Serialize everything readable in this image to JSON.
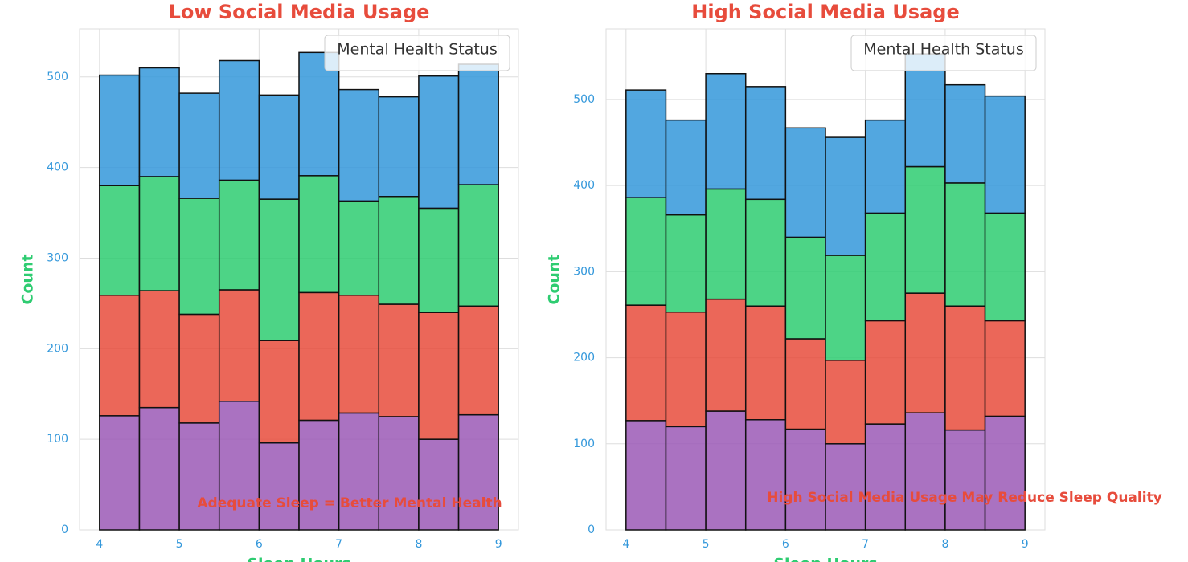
{
  "chart_data": [
    {
      "type": "stacked_histogram",
      "title": "Low Social Media Usage",
      "xlabel": "Sleep Hours",
      "ylabel": "Count",
      "legend_title": "Mental Health Status",
      "legend_loc": "upper right",
      "annotation": "Adequate Sleep = Better Mental Health",
      "bins": [
        4,
        4.5,
        5,
        5.5,
        6,
        6.5,
        7,
        7.5,
        8,
        8.5,
        9
      ],
      "series": [
        {
          "color": "#9b59b6",
          "values": [
            126,
            135,
            118,
            142,
            96,
            121,
            129,
            125,
            100,
            127
          ]
        },
        {
          "color": "#e74c3c",
          "values": [
            133,
            129,
            120,
            123,
            113,
            141,
            130,
            124,
            140,
            120
          ]
        },
        {
          "color": "#2ecc71",
          "values": [
            121,
            126,
            128,
            121,
            156,
            129,
            104,
            119,
            115,
            134
          ]
        },
        {
          "color": "#3498db",
          "values": [
            122,
            120,
            116,
            132,
            115,
            136,
            123,
            110,
            146,
            133
          ]
        }
      ],
      "xlim": [
        3.75,
        9.25
      ],
      "xticks": [
        4,
        5,
        6,
        7,
        8,
        9
      ],
      "ylim": [
        0,
        553
      ],
      "yticks": [
        0,
        100,
        200,
        300,
        400,
        500
      ],
      "grid": true
    },
    {
      "type": "stacked_histogram",
      "title": "High Social Media Usage",
      "xlabel": "Sleep Hours",
      "ylabel": "Count",
      "legend_title": "Mental Health Status",
      "legend_loc": "upper right",
      "annotation": "High Social Media Usage May Reduce Sleep Quality",
      "bins": [
        4,
        4.5,
        5,
        5.5,
        6,
        6.5,
        7,
        7.5,
        8,
        8.5,
        9
      ],
      "series": [
        {
          "color": "#9b59b6",
          "values": [
            127,
            120,
            138,
            128,
            117,
            100,
            123,
            136,
            116,
            132
          ]
        },
        {
          "color": "#e74c3c",
          "values": [
            134,
            133,
            130,
            132,
            105,
            97,
            120,
            139,
            144,
            111
          ]
        },
        {
          "color": "#2ecc71",
          "values": [
            125,
            113,
            128,
            124,
            118,
            122,
            125,
            147,
            143,
            125
          ]
        },
        {
          "color": "#3498db",
          "values": [
            125,
            110,
            134,
            131,
            127,
            137,
            108,
            131,
            114,
            136
          ]
        }
      ],
      "xlim": [
        3.75,
        9.25
      ],
      "xticks": [
        4,
        5,
        6,
        7,
        8,
        9
      ],
      "ylim": [
        0,
        582
      ],
      "yticks": [
        0,
        100,
        200,
        300,
        400,
        500
      ],
      "grid": true
    }
  ]
}
